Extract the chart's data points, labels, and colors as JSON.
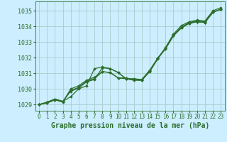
{
  "bg_color": "#cceeff",
  "plot_bg_color": "#cceeff",
  "grid_color": "#aacccc",
  "line_color": "#2d6e2d",
  "xlabel": "Graphe pression niveau de la mer (hPa)",
  "ylim": [
    1028.6,
    1035.6
  ],
  "xlim": [
    -0.5,
    23.5
  ],
  "yticks": [
    1029,
    1030,
    1031,
    1032,
    1033,
    1034,
    1035
  ],
  "xticks": [
    0,
    1,
    2,
    3,
    4,
    5,
    6,
    7,
    8,
    9,
    10,
    11,
    12,
    13,
    14,
    15,
    16,
    17,
    18,
    19,
    20,
    21,
    22,
    23
  ],
  "series": [
    [
      1029.0,
      1029.1,
      1029.3,
      1029.2,
      1029.5,
      1030.0,
      1030.2,
      1031.3,
      1031.4,
      1031.3,
      1031.05,
      1030.65,
      1030.65,
      1030.6,
      1031.15,
      1031.95,
      1032.65,
      1033.5,
      1034.05,
      1034.3,
      1034.4,
      1034.35,
      1035.0,
      1035.2
    ],
    [
      1029.0,
      1029.15,
      1029.35,
      1029.2,
      1029.85,
      1030.05,
      1030.45,
      1030.6,
      1031.35,
      1031.3,
      1031.05,
      1030.65,
      1030.6,
      1030.55,
      1031.15,
      1031.95,
      1032.55,
      1033.4,
      1033.9,
      1034.2,
      1034.3,
      1034.25,
      1034.9,
      1035.1
    ],
    [
      1029.0,
      1029.15,
      1029.35,
      1029.2,
      1029.9,
      1030.1,
      1030.5,
      1030.65,
      1031.1,
      1031.05,
      1030.7,
      1030.65,
      1030.55,
      1030.55,
      1031.1,
      1031.9,
      1032.6,
      1033.4,
      1033.9,
      1034.2,
      1034.3,
      1034.25,
      1034.9,
      1035.1
    ],
    [
      1029.0,
      1029.1,
      1029.3,
      1029.15,
      1030.0,
      1030.2,
      1030.55,
      1030.75,
      1031.1,
      1031.05,
      1030.7,
      1030.7,
      1030.6,
      1030.6,
      1031.2,
      1031.95,
      1032.6,
      1033.45,
      1033.95,
      1034.25,
      1034.35,
      1034.3,
      1034.9,
      1035.1
    ]
  ]
}
